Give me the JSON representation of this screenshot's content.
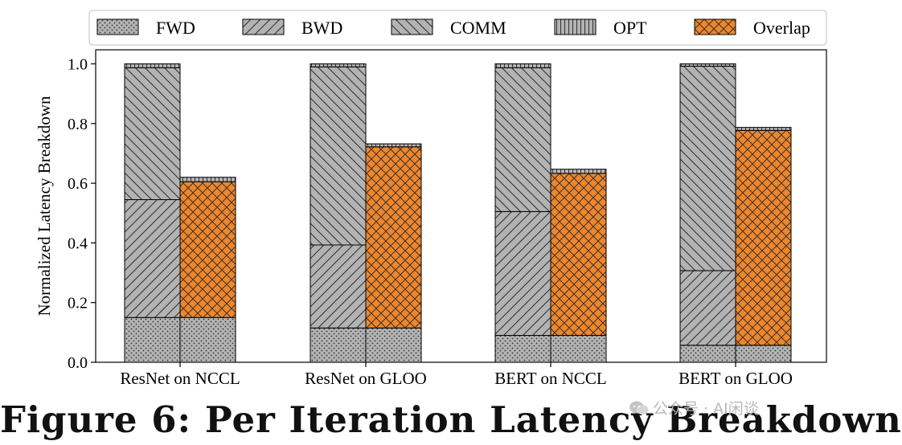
{
  "chart_data": {
    "type": "bar",
    "stacked": true,
    "ylabel": "Normalized Latency Breakdown",
    "ylim": [
      0,
      1.0
    ],
    "yticks": [
      "0.0",
      "0.2",
      "0.4",
      "0.6",
      "0.8",
      "1.0"
    ],
    "legend_position": "top",
    "grid": false,
    "categories": [
      "ResNet on NCCL",
      "ResNet on GLOO",
      "BERT on NCCL",
      "BERT on GLOO"
    ],
    "series_styles": [
      {
        "name": "FWD",
        "pattern": "dots",
        "color": "#b3b3b3"
      },
      {
        "name": "BWD",
        "pattern": "diagonal-forward",
        "color": "#b3b3b3"
      },
      {
        "name": "COMM",
        "pattern": "diagonal-back",
        "color": "#b3b3b3"
      },
      {
        "name": "OPT",
        "pattern": "vertical-lines",
        "color": "#b3b3b3"
      },
      {
        "name": "Overlap",
        "pattern": "crosshatch",
        "color": "#f0862a"
      }
    ],
    "bars": [
      {
        "category": "ResNet on NCCL",
        "sequential": {
          "FWD": 0.15,
          "BWD": 0.395,
          "COMM": 0.442,
          "OPT": 0.013
        },
        "overlapped": {
          "FWD": 0.15,
          "Overlap": 0.455,
          "OPT": 0.015
        }
      },
      {
        "category": "ResNet on GLOO",
        "sequential": {
          "FWD": 0.115,
          "BWD": 0.278,
          "COMM": 0.597,
          "OPT": 0.01
        },
        "overlapped": {
          "FWD": 0.115,
          "Overlap": 0.607,
          "OPT": 0.01
        }
      },
      {
        "category": "BERT on NCCL",
        "sequential": {
          "FWD": 0.09,
          "BWD": 0.415,
          "COMM": 0.482,
          "OPT": 0.013
        },
        "overlapped": {
          "FWD": 0.09,
          "Overlap": 0.543,
          "OPT": 0.014
        }
      },
      {
        "category": "BERT on GLOO",
        "sequential": {
          "FWD": 0.057,
          "BWD": 0.25,
          "COMM": 0.685,
          "OPT": 0.008
        },
        "overlapped": {
          "FWD": 0.057,
          "Overlap": 0.72,
          "OPT": 0.01
        }
      }
    ]
  },
  "caption": "Figure 6: Per Iteration Latency Breakdown",
  "watermark": "公众号 · AI闲谈"
}
